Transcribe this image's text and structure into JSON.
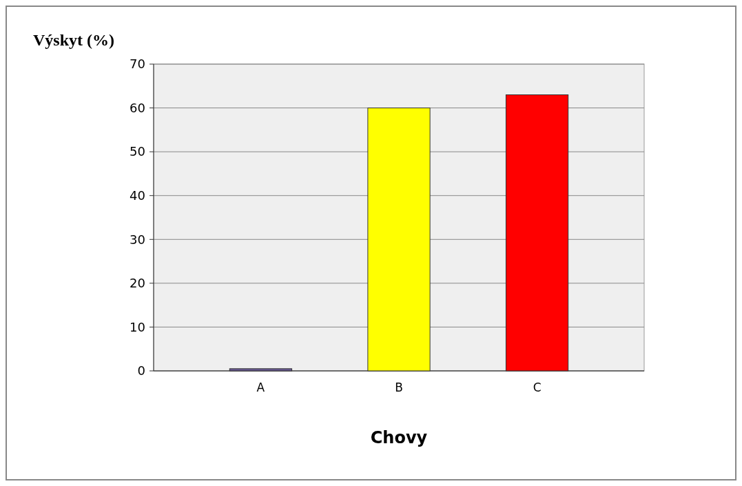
{
  "chart_data": {
    "type": "bar",
    "ylabel": "Výskyt (%)",
    "xlabel": "Chovy",
    "categories": [
      "A",
      "B",
      "C"
    ],
    "values": [
      0.5,
      60,
      63
    ],
    "colors": [
      "#6b5b95",
      "#ffff00",
      "#ff0000"
    ],
    "ylim": [
      0,
      70
    ],
    "yticks": [
      0,
      10,
      20,
      30,
      40,
      50,
      60,
      70
    ],
    "grid": "y"
  }
}
